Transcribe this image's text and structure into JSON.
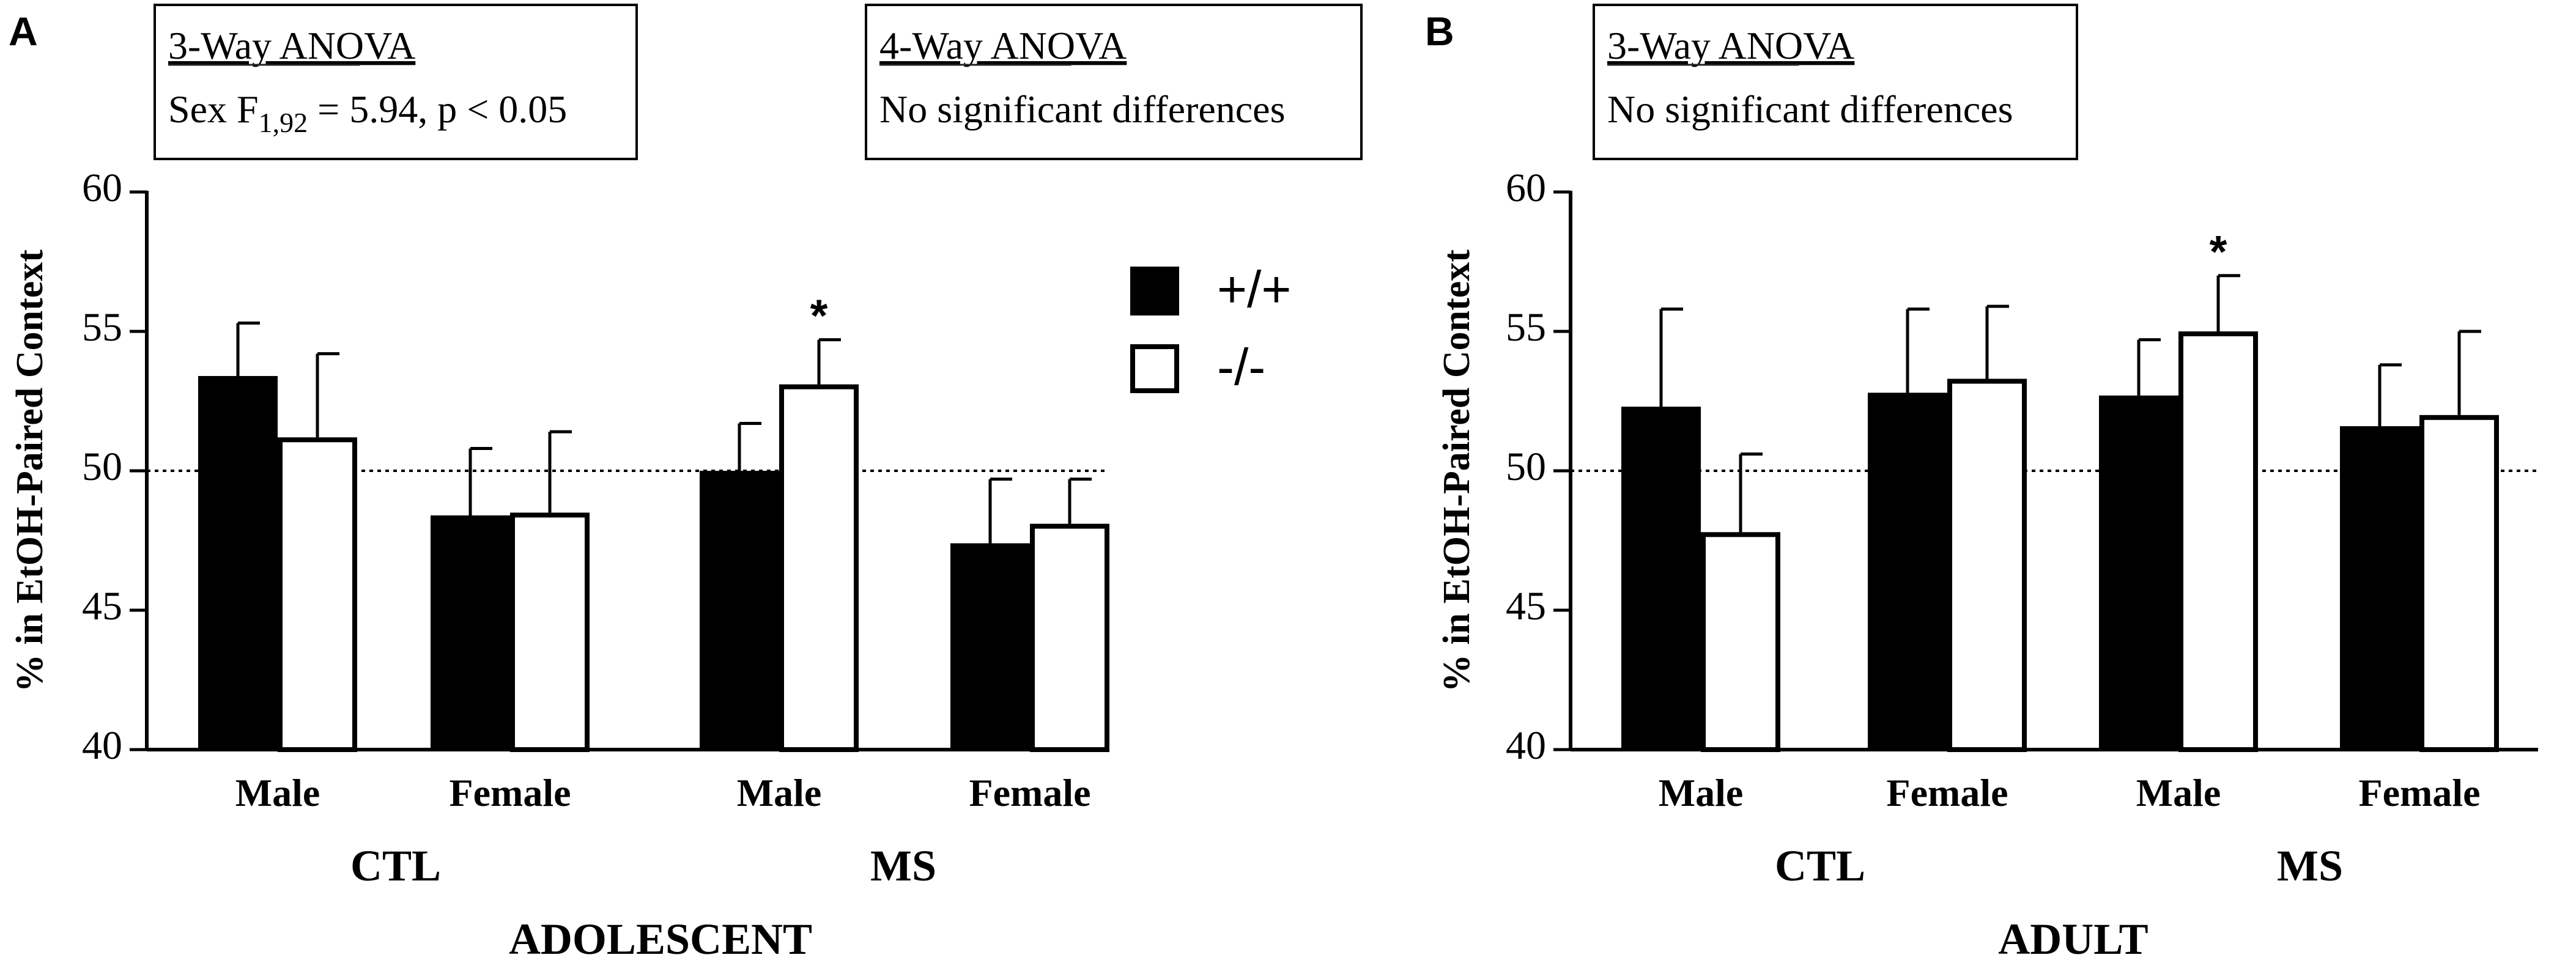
{
  "chart_data": [
    {
      "panel_label": "A",
      "type": "bar",
      "ylabel": "% in EtOH-Paired Context",
      "ylim": [
        40,
        60
      ],
      "yticks": [
        40,
        45,
        50,
        55,
        60
      ],
      "reference_line": 50,
      "categories": [
        "Male",
        "Female",
        "Male",
        "Female"
      ],
      "groups": [
        "CTL",
        "MS"
      ],
      "xlabel": "ADOLESCENT",
      "series": [
        {
          "name": "+/+",
          "fill": "#000000",
          "values": [
            53.4,
            48.4,
            50.0,
            47.4
          ],
          "errors": [
            1.9,
            2.4,
            1.7,
            2.3
          ]
        },
        {
          "name": "-/-",
          "fill": "#ffffff",
          "values": [
            51.2,
            48.5,
            53.1,
            48.1
          ],
          "errors": [
            3.0,
            2.9,
            1.6,
            1.6
          ]
        }
      ],
      "significance": [
        {
          "series": "-/-",
          "category_index": 2,
          "mark": "*"
        }
      ],
      "legend": {
        "position": "top-right",
        "entries": [
          "+/+",
          "-/-"
        ]
      },
      "annotations": [
        {
          "title": "3-Way ANOVA",
          "text_main": "Sex F",
          "text_sub": "1,92",
          "text_rest": " = 5.94, p < 0.05"
        },
        {
          "title": "4-Way ANOVA",
          "text_main": "No significant differences",
          "text_sub": "",
          "text_rest": ""
        }
      ]
    },
    {
      "panel_label": "B",
      "type": "bar",
      "ylabel": "% in EtOH-Paired Context",
      "ylim": [
        40,
        60
      ],
      "yticks": [
        40,
        45,
        50,
        55,
        60
      ],
      "reference_line": 50,
      "categories": [
        "Male",
        "Female",
        "Male",
        "Female"
      ],
      "groups": [
        "CTL",
        "MS"
      ],
      "xlabel": "ADULT",
      "series": [
        {
          "name": "+/+",
          "fill": "#000000",
          "values": [
            52.3,
            52.8,
            52.7,
            51.6
          ],
          "errors": [
            3.5,
            3.0,
            2.0,
            2.2
          ]
        },
        {
          "name": "-/-",
          "fill": "#ffffff",
          "values": [
            47.8,
            53.3,
            55.0,
            52.0
          ],
          "errors": [
            2.8,
            2.6,
            2.0,
            3.0
          ]
        }
      ],
      "significance": [
        {
          "series": "-/-",
          "category_index": 2,
          "mark": "*"
        }
      ],
      "annotations": [
        {
          "title": "3-Way ANOVA",
          "text_main": "No significant differences",
          "text_sub": "",
          "text_rest": ""
        }
      ]
    }
  ]
}
